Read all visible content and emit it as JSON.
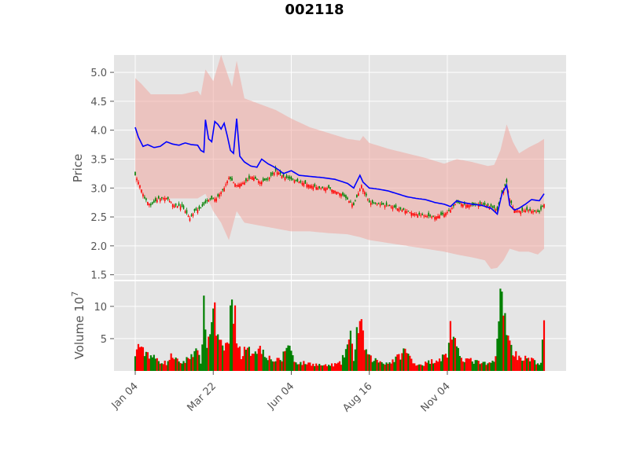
{
  "chart_data": [
    {
      "type": "candlestick",
      "title": "002118",
      "ylabel": "Price",
      "ylim": [
        1.4,
        5.3
      ],
      "yticks": [
        "1.5",
        "2.0",
        "2.5",
        "3.0",
        "3.5",
        "4.0",
        "4.5",
        "5.0"
      ],
      "xticks": [
        "Jan 04",
        "Mar 22",
        "Jun 04",
        "Aug 16",
        "Nov 04"
      ],
      "grid": true,
      "colors": {
        "up": "#ff0000",
        "down": "#008000",
        "line": "#0000ff",
        "band": "#f0a8a0",
        "background": "#e5e5e5"
      },
      "close_anchors": [
        [
          0,
          3.22
        ],
        [
          3,
          3.05
        ],
        [
          6,
          2.82
        ],
        [
          10,
          2.7
        ],
        [
          15,
          2.82
        ],
        [
          20,
          2.83
        ],
        [
          25,
          2.7
        ],
        [
          30,
          2.68
        ],
        [
          35,
          2.48
        ],
        [
          38,
          2.6
        ],
        [
          42,
          2.65
        ],
        [
          47,
          2.8
        ],
        [
          52,
          2.82
        ],
        [
          57,
          3.0
        ],
        [
          60,
          3.18
        ],
        [
          65,
          3.05
        ],
        [
          70,
          3.1
        ],
        [
          75,
          3.2
        ],
        [
          80,
          3.1
        ],
        [
          85,
          3.15
        ],
        [
          90,
          3.3
        ],
        [
          95,
          3.2
        ],
        [
          100,
          3.15
        ],
        [
          106,
          3.1
        ],
        [
          112,
          3.05
        ],
        [
          118,
          3.0
        ],
        [
          124,
          3.0
        ],
        [
          128,
          2.95
        ],
        [
          132,
          2.9
        ],
        [
          136,
          2.8
        ],
        [
          140,
          2.7
        ],
        [
          145,
          3.05
        ],
        [
          150,
          2.75
        ],
        [
          156,
          2.72
        ],
        [
          162,
          2.7
        ],
        [
          168,
          2.65
        ],
        [
          174,
          2.6
        ],
        [
          180,
          2.55
        ],
        [
          186,
          2.52
        ],
        [
          192,
          2.5
        ],
        [
          198,
          2.55
        ],
        [
          202,
          2.62
        ],
        [
          206,
          2.75
        ],
        [
          210,
          2.72
        ],
        [
          216,
          2.7
        ],
        [
          222,
          2.72
        ],
        [
          228,
          2.68
        ],
        [
          232,
          2.62
        ],
        [
          235,
          2.9
        ],
        [
          238,
          3.1
        ],
        [
          240,
          2.8
        ],
        [
          243,
          2.62
        ],
        [
          247,
          2.6
        ],
        [
          251,
          2.62
        ],
        [
          255,
          2.6
        ],
        [
          259,
          2.58
        ],
        [
          262,
          2.72
        ]
      ],
      "mean_anchors": [
        [
          0,
          4.05
        ],
        [
          2,
          3.88
        ],
        [
          5,
          3.72
        ],
        [
          8,
          3.75
        ],
        [
          12,
          3.7
        ],
        [
          16,
          3.72
        ],
        [
          20,
          3.8
        ],
        [
          24,
          3.76
        ],
        [
          28,
          3.74
        ],
        [
          32,
          3.78
        ],
        [
          36,
          3.75
        ],
        [
          40,
          3.74
        ],
        [
          42,
          3.65
        ],
        [
          44,
          3.62
        ],
        [
          45,
          4.18
        ],
        [
          47,
          3.85
        ],
        [
          49,
          3.8
        ],
        [
          51,
          4.15
        ],
        [
          53,
          4.1
        ],
        [
          55,
          4.02
        ],
        [
          57,
          4.12
        ],
        [
          59,
          3.9
        ],
        [
          61,
          3.65
        ],
        [
          63,
          3.6
        ],
        [
          65,
          4.2
        ],
        [
          67,
          3.55
        ],
        [
          70,
          3.45
        ],
        [
          74,
          3.38
        ],
        [
          78,
          3.36
        ],
        [
          81,
          3.5
        ],
        [
          85,
          3.42
        ],
        [
          90,
          3.35
        ],
        [
          95,
          3.25
        ],
        [
          100,
          3.3
        ],
        [
          105,
          3.22
        ],
        [
          112,
          3.2
        ],
        [
          120,
          3.18
        ],
        [
          128,
          3.15
        ],
        [
          136,
          3.08
        ],
        [
          140,
          3.0
        ],
        [
          144,
          3.22
        ],
        [
          146,
          3.1
        ],
        [
          150,
          3.0
        ],
        [
          156,
          2.98
        ],
        [
          162,
          2.95
        ],
        [
          168,
          2.9
        ],
        [
          174,
          2.85
        ],
        [
          180,
          2.82
        ],
        [
          186,
          2.8
        ],
        [
          192,
          2.75
        ],
        [
          198,
          2.72
        ],
        [
          202,
          2.68
        ],
        [
          206,
          2.78
        ],
        [
          210,
          2.75
        ],
        [
          216,
          2.72
        ],
        [
          222,
          2.7
        ],
        [
          228,
          2.65
        ],
        [
          232,
          2.55
        ],
        [
          235,
          2.9
        ],
        [
          238,
          3.05
        ],
        [
          240,
          2.7
        ],
        [
          243,
          2.62
        ],
        [
          246,
          2.65
        ],
        [
          250,
          2.72
        ],
        [
          254,
          2.8
        ],
        [
          259,
          2.78
        ],
        [
          262,
          2.9
        ]
      ],
      "upper_band_anchors": [
        [
          0,
          4.9
        ],
        [
          4,
          4.8
        ],
        [
          10,
          4.62
        ],
        [
          20,
          4.62
        ],
        [
          30,
          4.62
        ],
        [
          35,
          4.65
        ],
        [
          40,
          4.68
        ],
        [
          42,
          4.6
        ],
        [
          45,
          5.05
        ],
        [
          50,
          4.85
        ],
        [
          55,
          5.3
        ],
        [
          60,
          4.9
        ],
        [
          62,
          4.75
        ],
        [
          65,
          5.2
        ],
        [
          70,
          4.55
        ],
        [
          80,
          4.45
        ],
        [
          90,
          4.35
        ],
        [
          100,
          4.2
        ],
        [
          112,
          4.05
        ],
        [
          124,
          3.95
        ],
        [
          136,
          3.85
        ],
        [
          144,
          3.82
        ],
        [
          146,
          3.9
        ],
        [
          150,
          3.78
        ],
        [
          162,
          3.68
        ],
        [
          174,
          3.6
        ],
        [
          186,
          3.52
        ],
        [
          198,
          3.42
        ],
        [
          206,
          3.5
        ],
        [
          216,
          3.45
        ],
        [
          226,
          3.38
        ],
        [
          230,
          3.4
        ],
        [
          234,
          3.65
        ],
        [
          238,
          4.1
        ],
        [
          242,
          3.8
        ],
        [
          246,
          3.6
        ],
        [
          252,
          3.7
        ],
        [
          258,
          3.78
        ],
        [
          262,
          3.85
        ]
      ],
      "lower_band_anchors": [
        [
          0,
          3.1
        ],
        [
          5,
          2.85
        ],
        [
          10,
          2.78
        ],
        [
          20,
          2.82
        ],
        [
          30,
          2.82
        ],
        [
          40,
          2.82
        ],
        [
          45,
          2.9
        ],
        [
          50,
          2.6
        ],
        [
          55,
          2.4
        ],
        [
          60,
          2.1
        ],
        [
          65,
          2.6
        ],
        [
          70,
          2.4
        ],
        [
          80,
          2.35
        ],
        [
          90,
          2.3
        ],
        [
          100,
          2.25
        ],
        [
          112,
          2.25
        ],
        [
          124,
          2.22
        ],
        [
          136,
          2.2
        ],
        [
          144,
          2.15
        ],
        [
          150,
          2.1
        ],
        [
          162,
          2.05
        ],
        [
          174,
          2.0
        ],
        [
          186,
          1.95
        ],
        [
          198,
          1.9
        ],
        [
          206,
          1.85
        ],
        [
          216,
          1.8
        ],
        [
          224,
          1.75
        ],
        [
          228,
          1.6
        ],
        [
          232,
          1.62
        ],
        [
          236,
          1.75
        ],
        [
          240,
          1.95
        ],
        [
          246,
          1.9
        ],
        [
          252,
          1.9
        ],
        [
          258,
          1.85
        ],
        [
          262,
          1.95
        ]
      ]
    },
    {
      "type": "bar",
      "ylabel": "Volume  10",
      "ylabel_exponent": "7",
      "ylim": [
        0,
        14
      ],
      "yticks": [
        "5",
        "10"
      ],
      "volume_anchors": [
        [
          0,
          2.0
        ],
        [
          2,
          4.5
        ],
        [
          4,
          3.0
        ],
        [
          8,
          2.8
        ],
        [
          12,
          2.0
        ],
        [
          16,
          1.5
        ],
        [
          20,
          1.2
        ],
        [
          24,
          2.5
        ],
        [
          28,
          1.2
        ],
        [
          32,
          1.5
        ],
        [
          36,
          2.5
        ],
        [
          38,
          3.5
        ],
        [
          42,
          1.5
        ],
        [
          44,
          9.0
        ],
        [
          46,
          4.5
        ],
        [
          48,
          5.5
        ],
        [
          50,
          11.5
        ],
        [
          52,
          6.0
        ],
        [
          54,
          4.0
        ],
        [
          56,
          3.5
        ],
        [
          58,
          4.0
        ],
        [
          60,
          4.5
        ],
        [
          62,
          12.5
        ],
        [
          64,
          8.0
        ],
        [
          66,
          4.0
        ],
        [
          68,
          2.5
        ],
        [
          70,
          3.0
        ],
        [
          74,
          3.0
        ],
        [
          78,
          3.5
        ],
        [
          82,
          3.2
        ],
        [
          86,
          2.0
        ],
        [
          90,
          1.5
        ],
        [
          94,
          1.8
        ],
        [
          98,
          4.5
        ],
        [
          102,
          1.5
        ],
        [
          106,
          1.2
        ],
        [
          110,
          1.2
        ],
        [
          116,
          1.0
        ],
        [
          122,
          0.8
        ],
        [
          128,
          1.0
        ],
        [
          132,
          1.2
        ],
        [
          136,
          4.0
        ],
        [
          138,
          5.0
        ],
        [
          140,
          2.0
        ],
        [
          142,
          6.0
        ],
        [
          144,
          7.5
        ],
        [
          146,
          5.0
        ],
        [
          148,
          3.0
        ],
        [
          150,
          2.0
        ],
        [
          156,
          1.5
        ],
        [
          162,
          1.2
        ],
        [
          168,
          2.0
        ],
        [
          172,
          3.0
        ],
        [
          174,
          3.0
        ],
        [
          178,
          1.2
        ],
        [
          184,
          1.0
        ],
        [
          190,
          1.5
        ],
        [
          196,
          2.0
        ],
        [
          200,
          2.5
        ],
        [
          202,
          7.0
        ],
        [
          204,
          5.0
        ],
        [
          206,
          3.0
        ],
        [
          210,
          2.0
        ],
        [
          216,
          1.5
        ],
        [
          222,
          1.2
        ],
        [
          226,
          1.0
        ],
        [
          230,
          1.5
        ],
        [
          232,
          5.0
        ],
        [
          234,
          11.0
        ],
        [
          236,
          9.0
        ],
        [
          238,
          7.5
        ],
        [
          240,
          4.0
        ],
        [
          244,
          2.5
        ],
        [
          248,
          2.0
        ],
        [
          252,
          1.8
        ],
        [
          256,
          1.5
        ],
        [
          260,
          1.0
        ],
        [
          262,
          7.5
        ]
      ]
    }
  ]
}
